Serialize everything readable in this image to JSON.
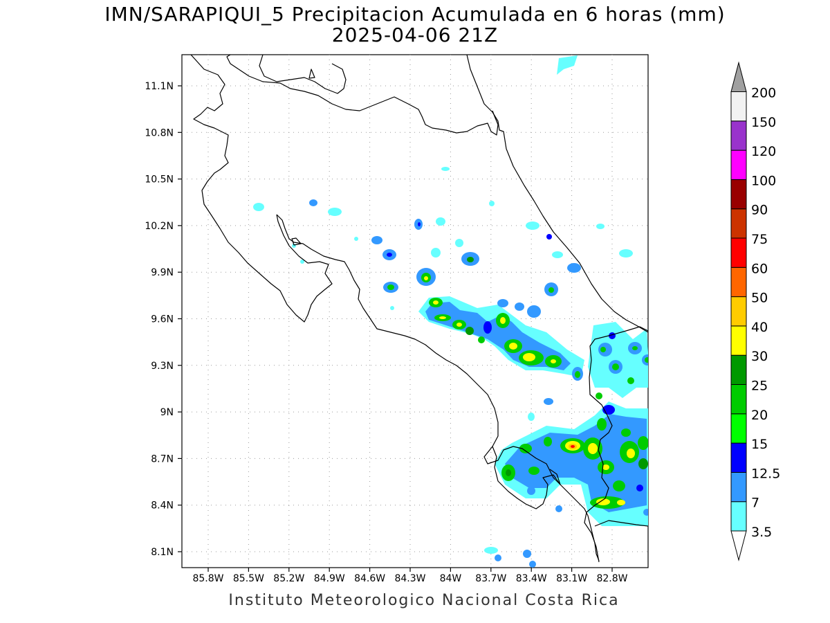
{
  "title": "IMN/SARAPIQUI_5 Precipitacion Acumulada en 6 horas (mm)",
  "valid_time": "2025-04-06 21Z",
  "credit": "Instituto Meteorologico Nacional Costa Rica",
  "lat_ticks": [
    "11.1N",
    "10.8N",
    "10.5N",
    "10.2N",
    "9.9N",
    "9.6N",
    "9.3N",
    "9N",
    "8.7N",
    "8.4N",
    "8.1N"
  ],
  "lon_ticks": [
    "85.8W",
    "85.5W",
    "85.2W",
    "84.9W",
    "84.6W",
    "84.3W",
    "84W",
    "83.7W",
    "83.4W",
    "83.1W",
    "82.8W"
  ],
  "legend": {
    "levels": [
      "3.5",
      "7",
      "12.5",
      "15",
      "20",
      "25",
      "30",
      "40",
      "50",
      "60",
      "75",
      "90",
      "100",
      "120",
      "150",
      "200"
    ],
    "colors": [
      "#66ffff",
      "#3399ff",
      "#0000ff",
      "#00ff00",
      "#00cc00",
      "#009900",
      "#ffff00",
      "#ffcc00",
      "#ff6600",
      "#ff0000",
      "#cc3300",
      "#990000",
      "#ff00ff",
      "#9933cc",
      "#f2f2f2",
      "#a0a0a0"
    ]
  }
}
